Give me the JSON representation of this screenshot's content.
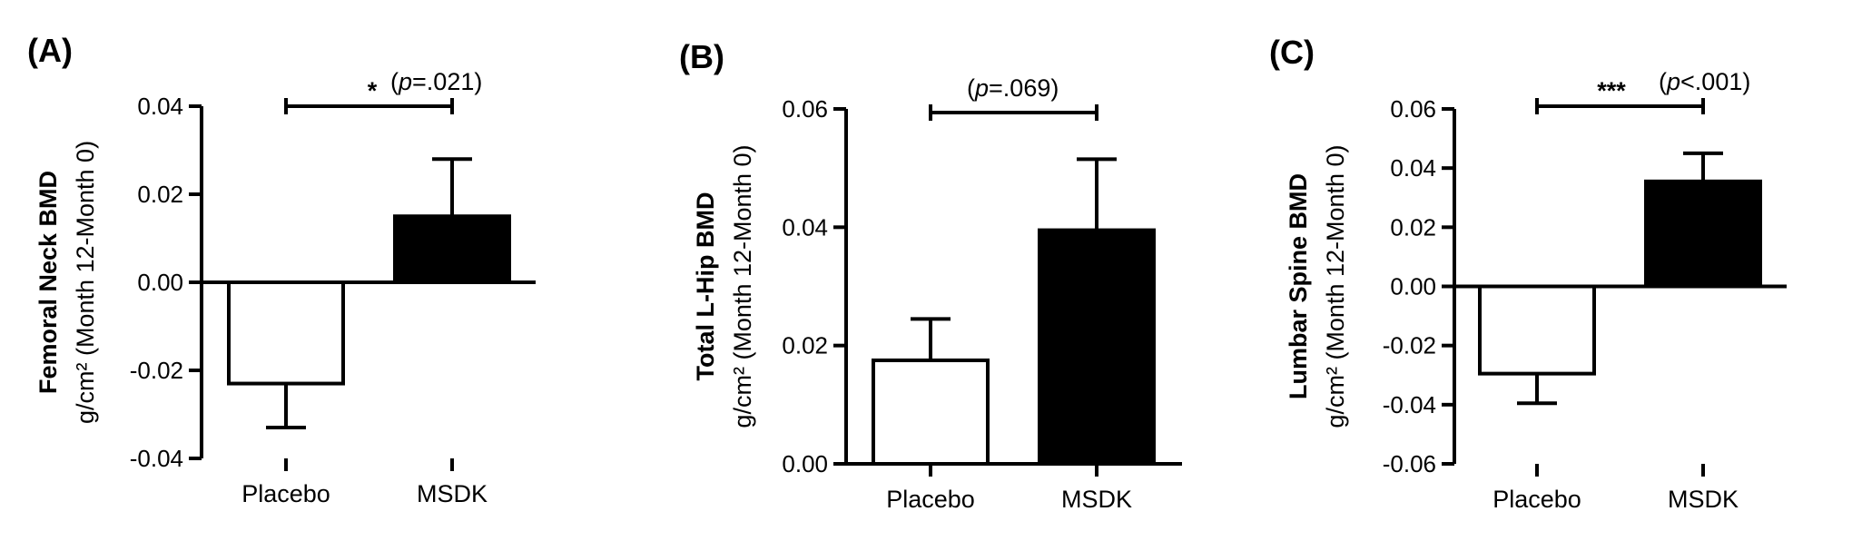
{
  "chart_data": [
    {
      "type": "bar",
      "panel_label": "(A)",
      "ylabel_main": "Femoral Neck BMD",
      "ylabel_unit": "g/cm² (Month 12-Month 0)",
      "categories": [
        "Placebo",
        "MSDK"
      ],
      "values": [
        -0.023,
        0.015
      ],
      "errors": [
        0.01,
        0.013
      ],
      "fills": [
        "#ffffff",
        "#000000"
      ],
      "ylim": [
        -0.04,
        0.04
      ],
      "yticks": [
        "-0.04",
        "-0.02",
        "0.00",
        "0.02",
        "0.04"
      ],
      "significance": {
        "stars": "*",
        "p_letter": "p",
        "p_value": "=.021"
      }
    },
    {
      "type": "bar",
      "panel_label": "(B)",
      "ylabel_main": "Total L-Hip BMD",
      "ylabel_unit": "g/cm² (Month 12-Month 0)",
      "categories": [
        "Placebo",
        "MSDK"
      ],
      "values": [
        0.0175,
        0.0395
      ],
      "errors": [
        0.007,
        0.012
      ],
      "fills": [
        "#ffffff",
        "#000000"
      ],
      "ylim": [
        0,
        0.06
      ],
      "yticks": [
        "0.00",
        "0.02",
        "0.04",
        "0.06"
      ],
      "significance": {
        "stars": "",
        "p_letter": "p",
        "p_value": "=.069"
      }
    },
    {
      "type": "bar",
      "panel_label": "(C)",
      "ylabel_main": "Lumbar Spine BMD",
      "ylabel_unit": "g/cm² (Month 12-Month 0)",
      "categories": [
        "Placebo",
        "MSDK"
      ],
      "values": [
        -0.0295,
        0.0355
      ],
      "errors": [
        0.01,
        0.0095
      ],
      "fills": [
        "#ffffff",
        "#000000"
      ],
      "ylim": [
        -0.06,
        0.06
      ],
      "yticks": [
        "-0.06",
        "-0.04",
        "-0.02",
        "0.00",
        "0.02",
        "0.04",
        "0.06"
      ],
      "significance": {
        "stars": "***",
        "p_letter": "p",
        "p_value": "<.001"
      }
    }
  ]
}
